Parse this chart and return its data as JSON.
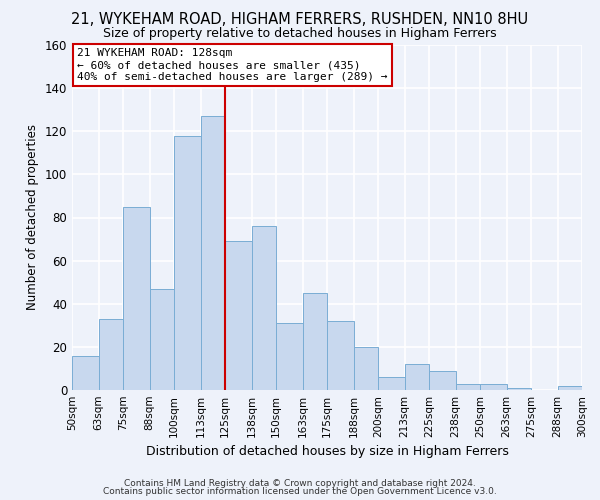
{
  "title": "21, WYKEHAM ROAD, HIGHAM FERRERS, RUSHDEN, NN10 8HU",
  "subtitle": "Size of property relative to detached houses in Higham Ferrers",
  "xlabel": "Distribution of detached houses by size in Higham Ferrers",
  "ylabel": "Number of detached properties",
  "bin_labels": [
    "50sqm",
    "63sqm",
    "75sqm",
    "88sqm",
    "100sqm",
    "113sqm",
    "125sqm",
    "138sqm",
    "150sqm",
    "163sqm",
    "175sqm",
    "188sqm",
    "200sqm",
    "213sqm",
    "225sqm",
    "238sqm",
    "250sqm",
    "263sqm",
    "275sqm",
    "288sqm",
    "300sqm"
  ],
  "bin_edges": [
    50,
    63,
    75,
    88,
    100,
    113,
    125,
    138,
    150,
    163,
    175,
    188,
    200,
    213,
    225,
    238,
    250,
    263,
    275,
    288,
    300
  ],
  "bar_heights": [
    16,
    33,
    85,
    47,
    118,
    127,
    69,
    76,
    31,
    45,
    32,
    20,
    6,
    12,
    9,
    3,
    3,
    1,
    0,
    2
  ],
  "bar_color": "#c8d8ee",
  "bar_edge_color": "#7aadd4",
  "background_color": "#eef2fa",
  "grid_color": "#ffffff",
  "vline_x": 125,
  "vline_color": "#cc0000",
  "annotation_title": "21 WYKEHAM ROAD: 128sqm",
  "annotation_line1": "← 60% of detached houses are smaller (435)",
  "annotation_line2": "40% of semi-detached houses are larger (289) →",
  "annotation_box_color": "#ffffff",
  "annotation_box_edge": "#cc0000",
  "ylim": [
    0,
    160
  ],
  "yticks": [
    0,
    20,
    40,
    60,
    80,
    100,
    120,
    140,
    160
  ],
  "footer1": "Contains HM Land Registry data © Crown copyright and database right 2024.",
  "footer2": "Contains public sector information licensed under the Open Government Licence v3.0."
}
